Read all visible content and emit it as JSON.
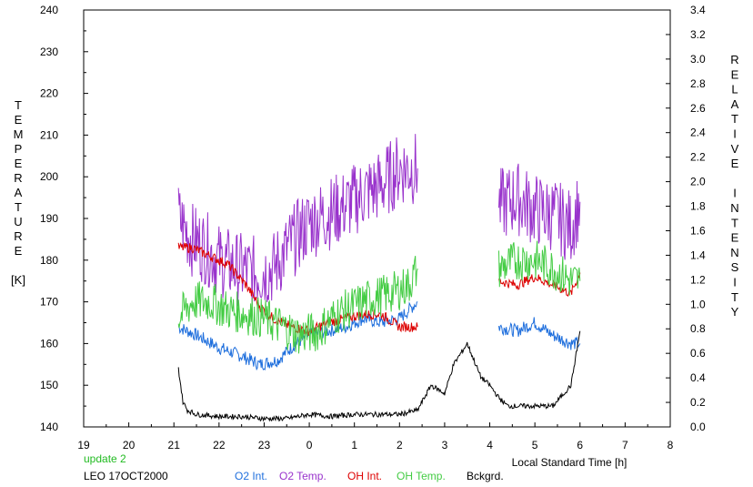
{
  "chart_data": {
    "type": "line",
    "xlabel": "Local Standard Time [h]",
    "ylabel_left": "TEMPERATURE",
    "ylabel_left_unit": "[K]",
    "ylabel_right": "RELATIVE INTENSITY",
    "x_ticks": [
      "19",
      "20",
      "21",
      "22",
      "23",
      "0",
      "1",
      "2",
      "3",
      "4",
      "5",
      "6",
      "7",
      "8"
    ],
    "xlim": [
      19,
      32
    ],
    "ylim_left": [
      140,
      240
    ],
    "ylim_right": [
      0.0,
      3.4
    ],
    "y_ticks_left": [
      "140",
      "150",
      "160",
      "170",
      "180",
      "190",
      "200",
      "210",
      "220",
      "230",
      "240"
    ],
    "y_ticks_right": [
      "0.0",
      "0.2",
      "0.4",
      "0.6",
      "0.8",
      "1.0",
      "1.2",
      "1.4",
      "1.6",
      "1.8",
      "2.0",
      "2.2",
      "2.4",
      "2.6",
      "2.8",
      "3.0",
      "3.2",
      "3.4"
    ],
    "grid": false,
    "legend_position": "bottom",
    "series": [
      {
        "name": "O2 Int.",
        "axis": "left",
        "color": "#1f6fdd",
        "x": [
          21.1,
          21.5,
          22.0,
          22.5,
          22.9,
          23.3,
          23.7,
          24.0,
          24.4,
          24.8,
          25.2,
          25.6,
          26.0,
          26.4,
          28.2,
          28.6,
          29.0,
          29.4,
          29.8,
          30.0
        ],
        "y": [
          164,
          162,
          159,
          157,
          155,
          156,
          160,
          162,
          163,
          164,
          166,
          165,
          166,
          170,
          164,
          163,
          165,
          162,
          160,
          160
        ]
      },
      {
        "name": "O2 Temp.",
        "axis": "left",
        "color": "#9933cc",
        "x": [
          21.1,
          21.4,
          21.7,
          22.0,
          22.4,
          22.8,
          23.2,
          23.6,
          24.0,
          24.4,
          24.8,
          25.2,
          25.6,
          26.0,
          26.4,
          28.2,
          28.6,
          29.0,
          29.4,
          29.8,
          30.0
        ],
        "y": [
          190,
          185,
          183,
          180,
          178,
          177,
          178,
          184,
          189,
          191,
          193,
          196,
          198,
          202,
          202,
          193,
          195,
          192,
          191,
          188,
          194
        ]
      },
      {
        "name": "OH Int.",
        "axis": "left",
        "color": "#dd0000",
        "x": [
          21.1,
          21.4,
          21.8,
          22.2,
          22.6,
          22.9,
          23.2,
          23.6,
          24.0,
          24.4,
          24.8,
          25.2,
          25.6,
          26.0,
          26.4,
          28.2,
          28.6,
          29.0,
          29.4,
          29.8,
          30.0
        ],
        "y": [
          183,
          183,
          181,
          179,
          174,
          169,
          166,
          164,
          163,
          165,
          166,
          167,
          167,
          164,
          164,
          175,
          174,
          176,
          174,
          172,
          177
        ]
      },
      {
        "name": "OH Temp.",
        "axis": "left",
        "color": "#44cc44",
        "x": [
          21.1,
          21.4,
          21.8,
          22.2,
          22.6,
          23.0,
          23.4,
          23.8,
          24.2,
          24.6,
          25.0,
          25.4,
          25.8,
          26.2,
          26.4,
          28.2,
          28.6,
          29.0,
          29.4,
          29.8,
          30.0
        ],
        "y": [
          166,
          170,
          170,
          168,
          167,
          166,
          164,
          162,
          163,
          167,
          169,
          171,
          172,
          174,
          178,
          178,
          180,
          180,
          178,
          175,
          175
        ]
      },
      {
        "name": "Bckgrd.",
        "axis": "left",
        "color": "#000000",
        "x": [
          21.1,
          21.2,
          21.3,
          21.5,
          22.0,
          22.5,
          23.0,
          23.5,
          24.0,
          24.5,
          25.0,
          25.5,
          26.0,
          26.4,
          26.7,
          27.0,
          27.2,
          27.5,
          27.8,
          28.0,
          28.2,
          28.4,
          28.6,
          29.0,
          29.4,
          29.8,
          30.0
        ],
        "y": [
          154,
          146,
          144,
          143,
          142.5,
          142.5,
          142,
          142,
          143,
          142.5,
          143,
          143,
          143,
          144,
          150,
          148,
          155,
          160,
          152,
          150,
          147,
          145,
          145,
          145,
          145,
          150,
          163
        ]
      }
    ]
  },
  "footer": {
    "update_label": "update 2",
    "station_label": "LEO 17OCT2000",
    "legend_o2int": "O2 Int.",
    "legend_o2temp": "O2 Temp.",
    "legend_ohint": "OH Int.",
    "legend_ohtemp": "OH Temp.",
    "legend_bckgrd": "Bckgrd."
  },
  "colors": {
    "o2int": "#1f6fdd",
    "o2temp": "#9933cc",
    "ohint": "#dd0000",
    "ohtemp": "#44cc44",
    "bckgrd": "#000000",
    "update": "#22bb22"
  }
}
